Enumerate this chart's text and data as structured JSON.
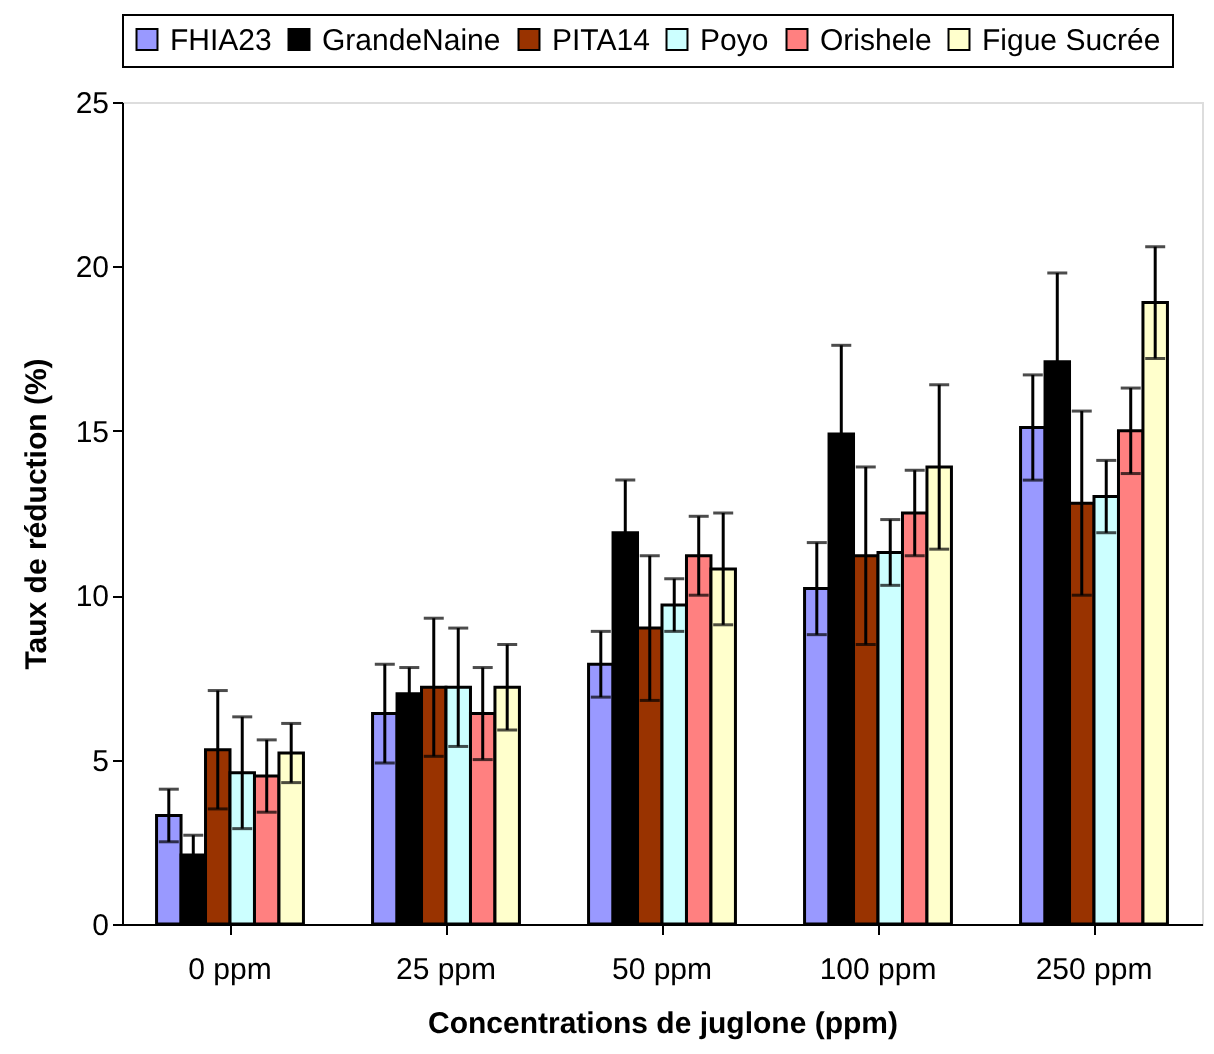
{
  "chart_data": {
    "type": "bar",
    "xlabel": "Concentrations de juglone (ppm)",
    "ylabel": "Taux de réduction (%)",
    "categories": [
      "0 ppm",
      "25 ppm",
      "50 ppm",
      "100 ppm",
      "250 ppm"
    ],
    "series": [
      {
        "name": "FHIA23",
        "color": "#9999ff",
        "values": [
          3.3,
          6.4,
          7.9,
          10.2,
          15.1
        ],
        "errors": [
          0.8,
          1.5,
          1.0,
          1.4,
          1.6
        ]
      },
      {
        "name": "GrandeNaine",
        "color": "#000000",
        "values": [
          2.1,
          7.0,
          11.9,
          14.9,
          17.1
        ],
        "errors": [
          0.6,
          0.8,
          1.6,
          2.7,
          2.7
        ]
      },
      {
        "name": "PITA14",
        "color": "#993300",
        "values": [
          5.3,
          7.2,
          9.0,
          11.2,
          12.8
        ],
        "errors": [
          1.8,
          2.1,
          2.2,
          2.7,
          2.8
        ]
      },
      {
        "name": "Poyo",
        "color": "#ccffff",
        "values": [
          4.6,
          7.2,
          9.7,
          11.3,
          13.0
        ],
        "errors": [
          1.7,
          1.8,
          0.8,
          1.0,
          1.1
        ]
      },
      {
        "name": "Orishele",
        "color": "#ff8080",
        "values": [
          4.5,
          6.4,
          11.2,
          12.5,
          15.0
        ],
        "errors": [
          1.1,
          1.4,
          1.2,
          1.3,
          1.3
        ]
      },
      {
        "name": "Figue Sucrée",
        "color": "#ffffcc",
        "values": [
          5.2,
          7.2,
          10.8,
          13.9,
          18.9
        ],
        "errors": [
          0.9,
          1.3,
          1.7,
          2.5,
          1.7
        ]
      }
    ],
    "ylim": [
      0,
      25
    ],
    "yticks": [
      0,
      5,
      10,
      15,
      20,
      25
    ],
    "grid": false,
    "legend": "top"
  }
}
